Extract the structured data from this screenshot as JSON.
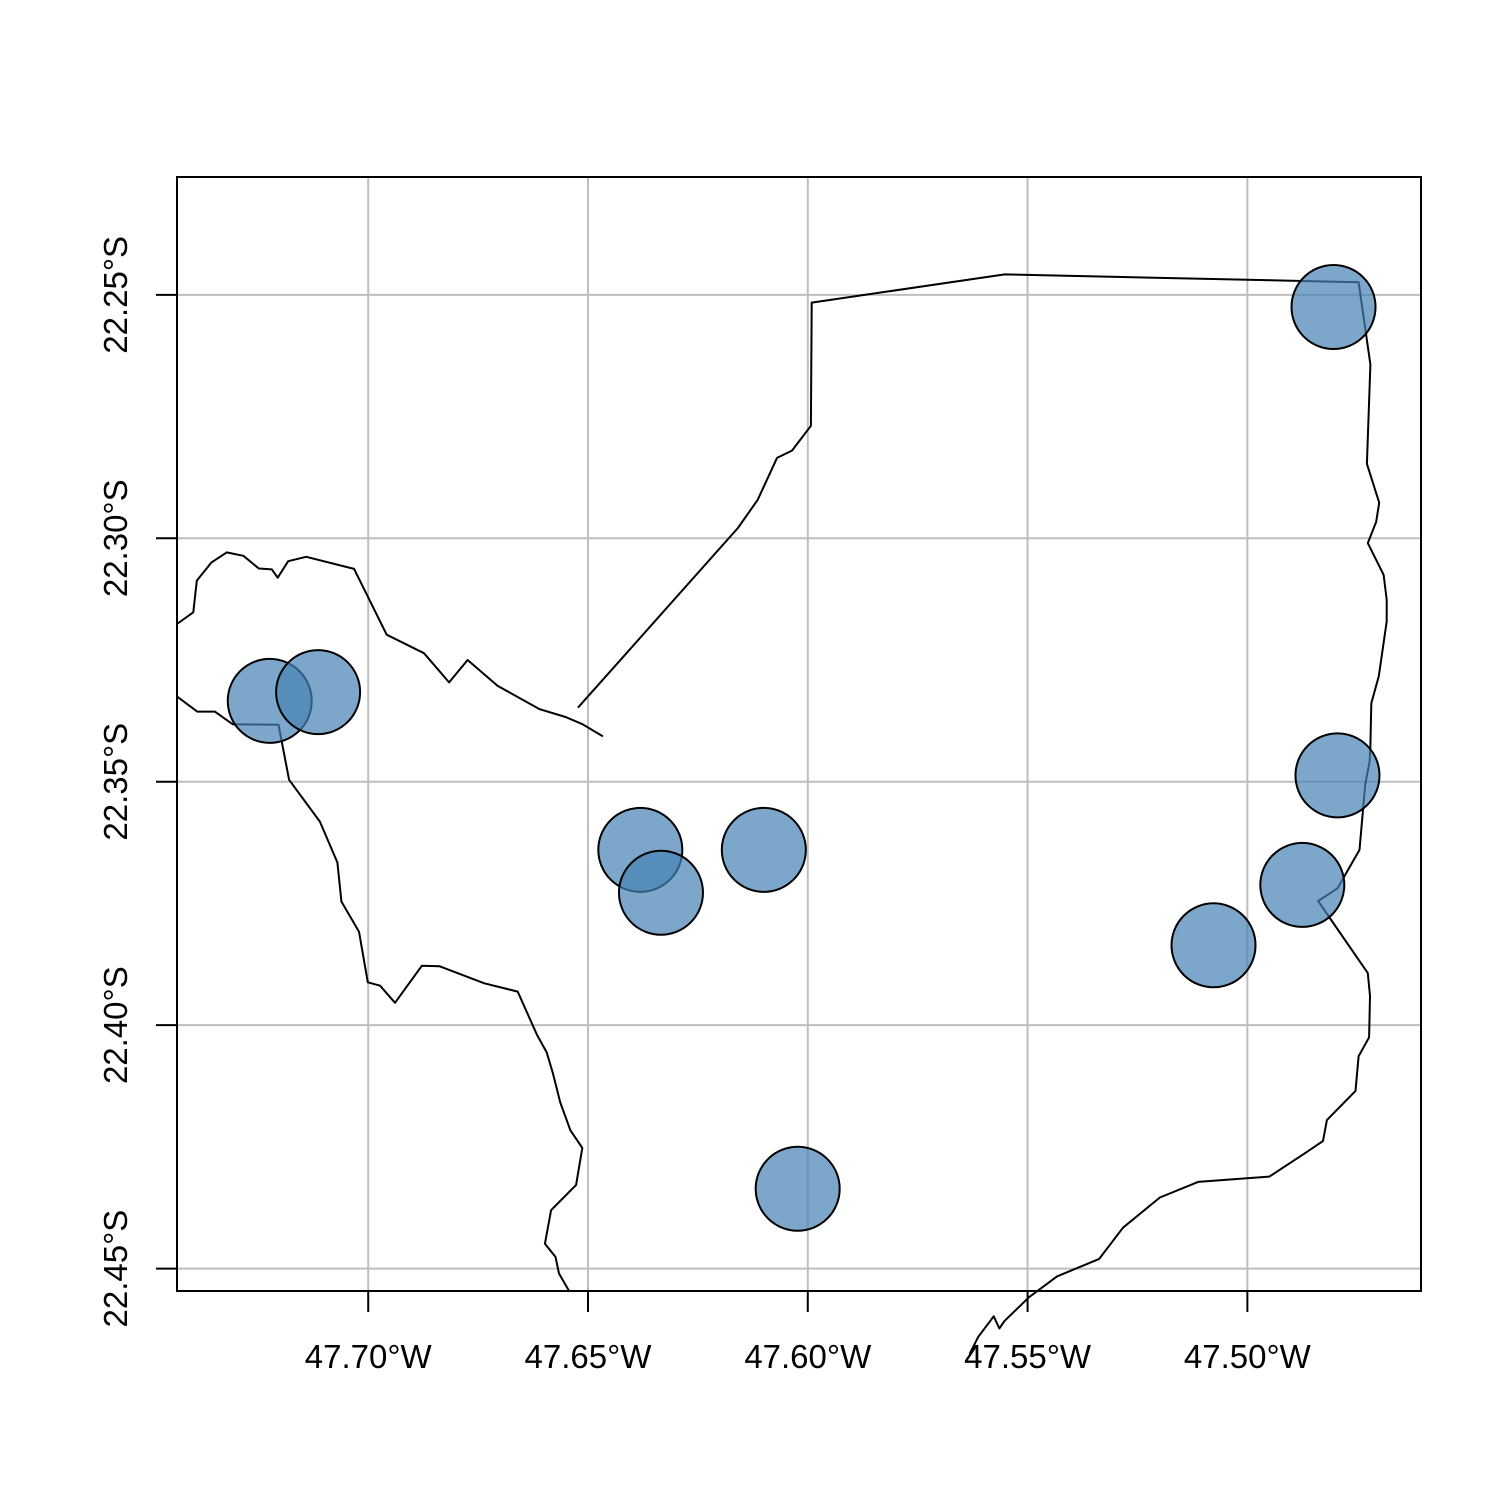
{
  "map": {
    "x_axis": {
      "ticks": [
        {
          "value": -47.7,
          "label": "47.70°W"
        },
        {
          "value": -47.65,
          "label": "47.65°W"
        },
        {
          "value": -47.6,
          "label": "47.60°W"
        },
        {
          "value": -47.55,
          "label": "47.55°W"
        },
        {
          "value": -47.5,
          "label": "47.50°W"
        }
      ],
      "range": [
        -47.7435,
        -47.4605
      ]
    },
    "y_axis": {
      "ticks": [
        {
          "value": -22.25,
          "label": "22.25°S"
        },
        {
          "value": -22.3,
          "label": "22.30°S"
        },
        {
          "value": -22.35,
          "label": "22.35°S"
        },
        {
          "value": -22.4,
          "label": "22.40°S"
        },
        {
          "value": -22.45,
          "label": "22.45°S"
        }
      ],
      "range": [
        -22.4546,
        -22.2258
      ]
    },
    "grid": true,
    "colors": {
      "grid": "#bebebe",
      "marker_fill": "#4682b4",
      "marker_opacity": 0.7,
      "outline": "#000000"
    },
    "points": [
      {
        "lon": -47.4804,
        "lat": -22.2525
      },
      {
        "lon": -47.7224,
        "lat": -22.3334
      },
      {
        "lon": -47.7114,
        "lat": -22.3316
      },
      {
        "lon": -47.6381,
        "lat": -22.364
      },
      {
        "lon": -47.6334,
        "lat": -22.3728
      },
      {
        "lon": -47.61,
        "lat": -22.364
      },
      {
        "lon": -47.4795,
        "lat": -22.3487
      },
      {
        "lon": -47.4875,
        "lat": -22.3712
      },
      {
        "lon": -47.5077,
        "lat": -22.3836
      },
      {
        "lon": -47.6023,
        "lat": -22.4336
      }
    ],
    "boundaries": [
      [
        [
          -47.6523,
          -22.3348
        ],
        [
          -47.6159,
          -22.2979
        ],
        [
          -47.6114,
          -22.2921
        ],
        [
          -47.607,
          -22.2835
        ],
        [
          -47.6036,
          -22.282
        ],
        [
          -47.5993,
          -22.2769
        ],
        [
          -47.5991,
          -22.2516
        ],
        [
          -47.5552,
          -22.2458
        ],
        [
          -47.4747,
          -22.2474
        ],
        [
          -47.472,
          -22.2643
        ],
        [
          -47.4728,
          -22.2847
        ],
        [
          -47.47,
          -22.2927
        ],
        [
          -47.4707,
          -22.2966
        ],
        [
          -47.4726,
          -22.301
        ],
        [
          -47.469,
          -22.3075
        ],
        [
          -47.4683,
          -22.3126
        ],
        [
          -47.4683,
          -22.3171
        ],
        [
          -47.4701,
          -22.3283
        ],
        [
          -47.4718,
          -22.3339
        ],
        [
          -47.472,
          -22.3426
        ],
        [
          -47.4722,
          -22.3459
        ],
        [
          -47.4732,
          -22.3506
        ],
        [
          -47.4745,
          -22.364
        ],
        [
          -47.4795,
          -22.3719
        ],
        [
          -47.4839,
          -22.3745
        ],
        [
          -47.4726,
          -22.3893
        ],
        [
          -47.4721,
          -22.394
        ],
        [
          -47.4723,
          -22.4025
        ],
        [
          -47.4747,
          -22.4064
        ],
        [
          -47.4754,
          -22.4135
        ],
        [
          -47.4819,
          -22.4195
        ],
        [
          -47.4828,
          -22.4238
        ],
        [
          -47.4869,
          -22.4263
        ],
        [
          -47.495,
          -22.4311
        ],
        [
          -47.5024,
          -22.4316
        ],
        [
          -47.5112,
          -22.4322
        ],
        [
          -47.5199,
          -22.4354
        ],
        [
          -47.5283,
          -22.4416
        ],
        [
          -47.5337,
          -22.448
        ],
        [
          -47.5433,
          -22.4516
        ],
        [
          -47.5497,
          -22.4559
        ],
        [
          -47.5553,
          -22.4608
        ],
        [
          -47.5564,
          -22.4623
        ],
        [
          -47.5577,
          -22.4598
        ],
        [
          -47.5612,
          -22.464
        ],
        [
          -47.5632,
          -22.4675
        ]
      ],
      [
        [
          -47.7435,
          -22.3176
        ],
        [
          -47.7398,
          -22.3152
        ],
        [
          -47.739,
          -22.3087
        ],
        [
          -47.7357,
          -22.305
        ],
        [
          -47.7322,
          -22.3029
        ],
        [
          -47.7284,
          -22.3036
        ],
        [
          -47.7249,
          -22.3062
        ],
        [
          -47.7219,
          -22.3064
        ],
        [
          -47.7206,
          -22.3081
        ],
        [
          -47.7182,
          -22.3047
        ],
        [
          -47.7141,
          -22.3038
        ],
        [
          -47.7032,
          -22.3063
        ],
        [
          -47.6958,
          -22.3198
        ],
        [
          -47.6873,
          -22.3236
        ],
        [
          -47.6816,
          -22.3296
        ],
        [
          -47.6774,
          -22.325
        ],
        [
          -47.6706,
          -22.3303
        ],
        [
          -47.661,
          -22.3351
        ],
        [
          -47.6551,
          -22.3367
        ],
        [
          -47.6512,
          -22.3382
        ],
        [
          -47.6466,
          -22.3407
        ]
      ],
      [
        [
          -47.7435,
          -22.3325
        ],
        [
          -47.7389,
          -22.3356
        ],
        [
          -47.7349,
          -22.3356
        ],
        [
          -47.7308,
          -22.3382
        ],
        [
          -47.7204,
          -22.3383
        ],
        [
          -47.718,
          -22.3496
        ],
        [
          -47.711,
          -22.3582
        ],
        [
          -47.707,
          -22.3666
        ],
        [
          -47.7061,
          -22.3746
        ],
        [
          -47.7021,
          -22.3808
        ],
        [
          -47.7001,
          -22.3912
        ],
        [
          -47.6973,
          -22.3919
        ],
        [
          -47.6939,
          -22.3954
        ],
        [
          -47.6878,
          -22.3878
        ],
        [
          -47.6838,
          -22.3879
        ],
        [
          -47.6736,
          -22.3914
        ],
        [
          -47.666,
          -22.3931
        ],
        [
          -47.6616,
          -22.402
        ],
        [
          -47.6594,
          -22.4056
        ],
        [
          -47.658,
          -22.4098
        ],
        [
          -47.6563,
          -22.4159
        ],
        [
          -47.654,
          -22.4216
        ],
        [
          -47.6513,
          -22.4252
        ],
        [
          -47.6527,
          -22.4328
        ],
        [
          -47.6584,
          -22.438
        ],
        [
          -47.6598,
          -22.4449
        ],
        [
          -47.6574,
          -22.4476
        ],
        [
          -47.6566,
          -22.451
        ],
        [
          -47.6543,
          -22.4546
        ]
      ]
    ]
  }
}
